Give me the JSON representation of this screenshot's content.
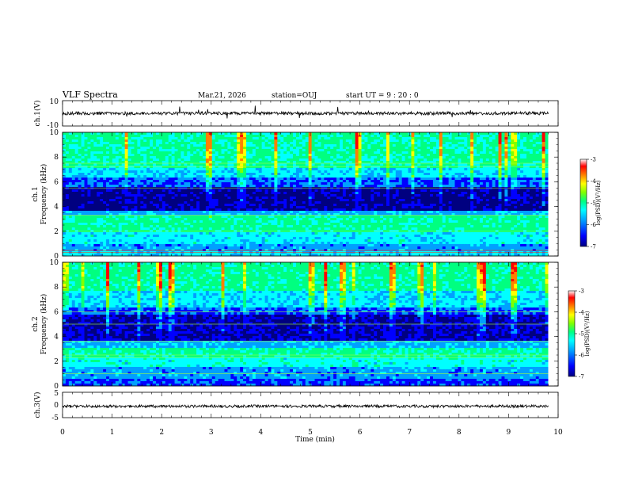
{
  "header": {
    "title": "VLF Spectra",
    "date": "Mar.21, 2026",
    "station": "station=OUJ",
    "start": "start UT =  9 : 20 : 0"
  },
  "chart_data": [
    {
      "id": "ch1-waveform",
      "type": "line",
      "ylabel": "ch.1(V)",
      "ylim": [
        -10,
        10
      ],
      "yticks": [
        "10",
        "-10"
      ],
      "baseline": 0
    },
    {
      "id": "ch1-spectrogram",
      "type": "heatmap",
      "ylabel": "ch.1\nFrequency (kHz)",
      "ylabel_line1": "ch.1",
      "ylabel_line2": "Frequency (kHz)",
      "ylim": [
        0,
        10
      ],
      "yticks": [
        "0",
        "2",
        "4",
        "6",
        "8",
        "10"
      ],
      "colorbar": {
        "label": "log(PSD)(V²/Hz)",
        "range": [
          -7,
          -3
        ],
        "ticks": [
          "-3",
          "-4",
          "-5",
          "-6",
          "-7"
        ]
      }
    },
    {
      "id": "ch2-spectrogram",
      "type": "heatmap",
      "ylabel": "ch.2\nFrequency (kHz)",
      "ylabel_line1": "ch.2",
      "ylabel_line2": "Frequency (kHz)",
      "ylim": [
        0,
        10
      ],
      "yticks": [
        "0",
        "2",
        "4",
        "6",
        "8",
        "10"
      ],
      "colorbar": {
        "label": "log(PSD)(V²/Hz)",
        "range": [
          -7,
          -3
        ],
        "ticks": [
          "-3",
          "-4",
          "-5",
          "-6",
          "-7"
        ]
      }
    },
    {
      "id": "ch3-waveform",
      "type": "line",
      "ylabel": "ch.3(V)",
      "ylim": [
        -5,
        5
      ],
      "yticks": [
        "5",
        "0",
        "-5"
      ],
      "baseline": -0.5
    }
  ],
  "xaxis": {
    "label": "Time (min)",
    "range": [
      0,
      10
    ],
    "ticks": [
      "0",
      "1",
      "2",
      "3",
      "4",
      "5",
      "6",
      "7",
      "8",
      "9",
      "10"
    ],
    "data_end": 9.8
  },
  "colors": {
    "spectrum": [
      "#000080",
      "#0000ff",
      "#00a0ff",
      "#00ffff",
      "#00ff80",
      "#80ff00",
      "#ffff00",
      "#ff8000",
      "#ff0000",
      "#ffffff"
    ]
  }
}
